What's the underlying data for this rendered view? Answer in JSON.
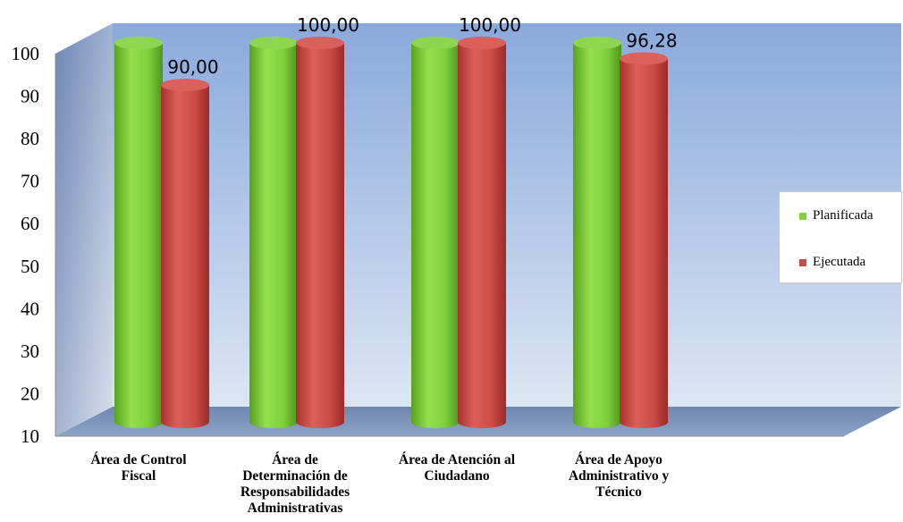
{
  "chart_data": {
    "type": "bar",
    "categories": [
      "Área de Control Fiscal",
      "Área de Determinación de Responsabilidades Administrativas",
      "Área de Atención al Ciudadano",
      "Área de Apoyo Administrativo y Técnico"
    ],
    "category_lines": [
      [
        "Área de Control",
        "Fiscal"
      ],
      [
        "Área de",
        "Determinación de",
        "Responsabilidades",
        "Administrativas"
      ],
      [
        "Área de Atención al",
        "Ciudadano"
      ],
      [
        "Área de Apoyo",
        "Administrativo y",
        "Técnico"
      ]
    ],
    "series": [
      {
        "name": "Planificada",
        "color": "#7dd23c",
        "values": [
          100,
          100,
          100,
          100
        ],
        "labels": [
          "",
          "",
          "",
          ""
        ]
      },
      {
        "name": "Ejecutada",
        "color": "#cc4b47",
        "values": [
          90,
          100,
          100,
          96.28
        ],
        "labels": [
          "90,00",
          "100,00",
          "100,00",
          "96,28"
        ]
      }
    ],
    "ylim": [
      10,
      100
    ],
    "yticks": [
      "10",
      "20",
      "30",
      "40",
      "50",
      "60",
      "70",
      "80",
      "90",
      "100"
    ],
    "legend_position": "right",
    "grid": false,
    "style": "3d-cylinder"
  }
}
